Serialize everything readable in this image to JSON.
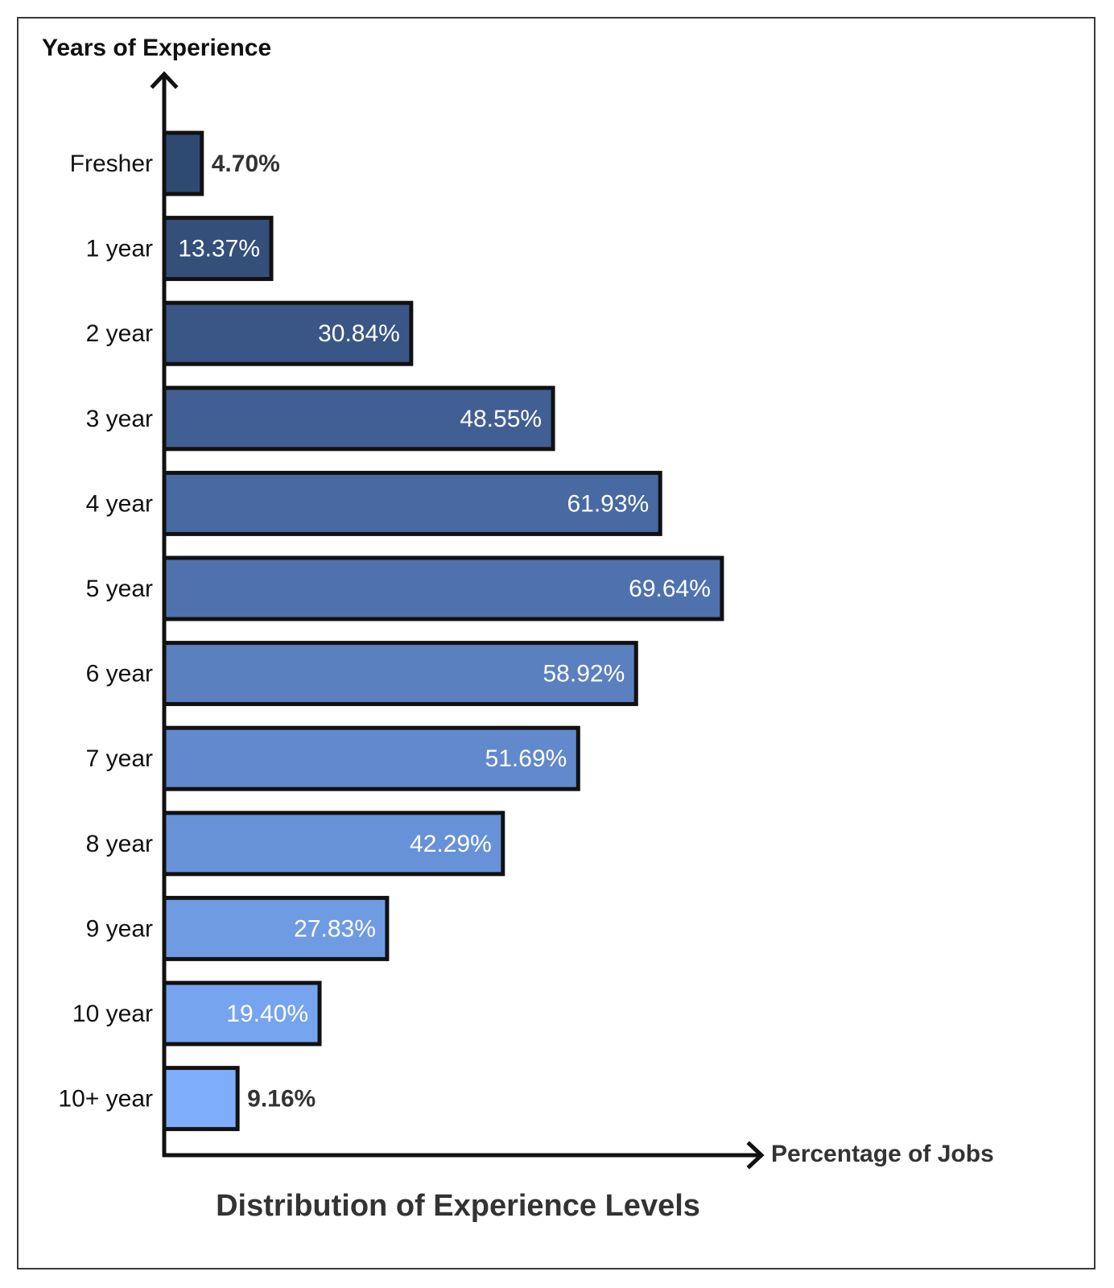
{
  "chart_data": {
    "type": "bar",
    "orientation": "horizontal",
    "title": "Distribution of Experience Levels",
    "xlabel": "Percentage of Jobs",
    "ylabel": "Years of Experience",
    "categories": [
      "Fresher",
      "1 year",
      "2 year",
      "3 year",
      "4 year",
      "5 year",
      "6 year",
      "7 year",
      "8 year",
      "9 year",
      "10 year",
      "10+ year"
    ],
    "values": [
      4.7,
      13.37,
      30.84,
      48.55,
      61.93,
      69.64,
      58.92,
      51.69,
      42.29,
      27.83,
      19.4,
      9.16
    ],
    "value_labels": [
      "4.70%",
      "13.37%",
      "30.84%",
      "48.55%",
      "61.93%",
      "69.64%",
      "58.92%",
      "51.69%",
      "42.29%",
      "27.83%",
      "19.40%",
      "9.16%"
    ],
    "bar_colors": [
      "#2f4a72",
      "#344f7a",
      "#3a5686",
      "#415f93",
      "#4869a1",
      "#4f72ae",
      "#5a80bf",
      "#6189cc",
      "#6892d8",
      "#6f9be3",
      "#76a4ee",
      "#7eaefb"
    ],
    "bar_outline_color": "#111111",
    "grid": false,
    "legend": "none"
  }
}
